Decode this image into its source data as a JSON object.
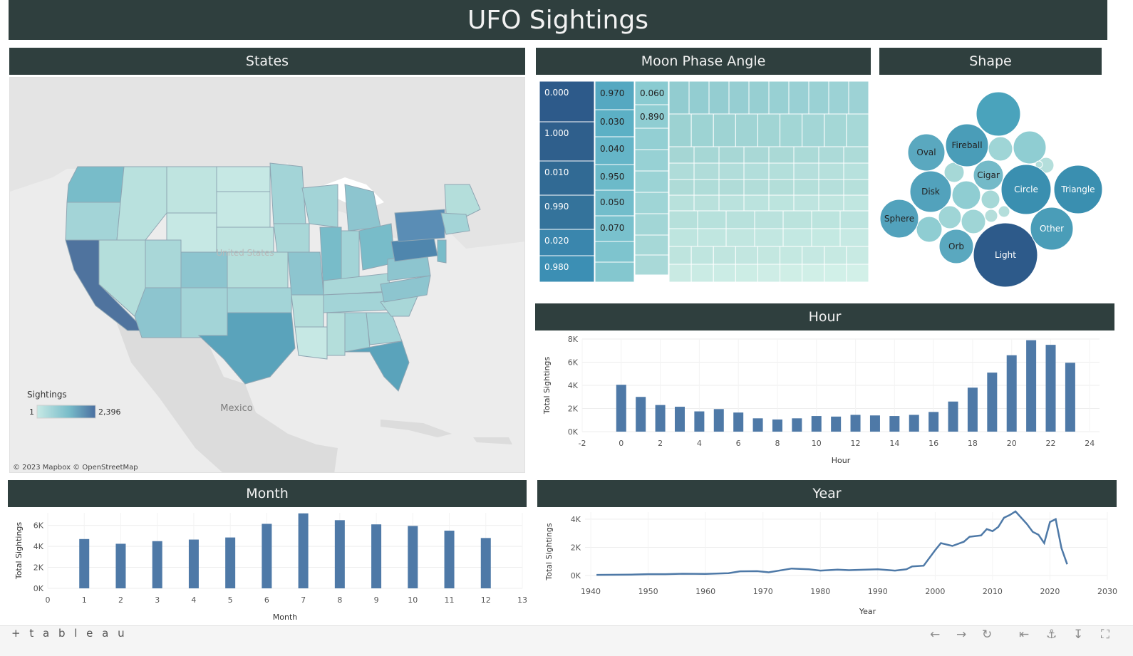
{
  "title": "UFO Sightings",
  "panels": {
    "states": "States",
    "moon": "Moon Phase Angle",
    "shape": "Shape",
    "hour": "Hour",
    "month": "Month",
    "year": "Year"
  },
  "map": {
    "legend_title": "Sightings",
    "legend_min": "1",
    "legend_max": "2,396",
    "country_label": "United States",
    "mexico_label": "Mexico",
    "attribution": "© 2023 Mapbox  © OpenStreetMap",
    "colors": {
      "low": "#c7e9e5",
      "high": "#4a6fa0"
    }
  },
  "chart_data": [
    {
      "id": "moon",
      "type": "treemap",
      "title": "Moon Phase Angle",
      "labeled_cells": [
        "0.000",
        "1.000",
        "0.010",
        "0.990",
        "0.020",
        "0.980",
        "0.970",
        "0.030",
        "0.040",
        "0.950",
        "0.050",
        "0.070",
        "0.060",
        "0.890"
      ]
    },
    {
      "id": "shape",
      "type": "bubble",
      "title": "Shape",
      "labels": [
        "Light",
        "Triangle",
        "Circle",
        "Fireball",
        "Other",
        "Sphere",
        "Disk",
        "Oval",
        "Orb",
        "Cigar"
      ]
    },
    {
      "id": "hour",
      "type": "bar",
      "title": "Hour",
      "xlabel": "Hour",
      "ylabel": "Total Sightings",
      "x": [
        0,
        1,
        2,
        3,
        4,
        5,
        6,
        7,
        8,
        9,
        10,
        11,
        12,
        13,
        14,
        15,
        16,
        17,
        18,
        19,
        20,
        21,
        22,
        23
      ],
      "values": [
        4050,
        3000,
        2300,
        2150,
        1750,
        1950,
        1650,
        1150,
        1050,
        1150,
        1350,
        1300,
        1450,
        1400,
        1350,
        1450,
        1700,
        2600,
        3800,
        5100,
        6600,
        7900,
        7500,
        5950
      ],
      "xlim": [
        -2,
        24.5
      ],
      "ylim": [
        0,
        8000
      ],
      "xticks": [
        "-2",
        "0",
        "2",
        "4",
        "6",
        "8",
        "10",
        "12",
        "14",
        "16",
        "18",
        "20",
        "22",
        "24"
      ],
      "yticks": [
        "0K",
        "2K",
        "4K",
        "6K",
        "8K"
      ]
    },
    {
      "id": "month",
      "type": "bar",
      "title": "Month",
      "xlabel": "Month",
      "ylabel": "Total Sightings",
      "x": [
        1,
        2,
        3,
        4,
        5,
        6,
        7,
        8,
        9,
        10,
        11,
        12
      ],
      "values": [
        4700,
        4250,
        4500,
        4650,
        4850,
        6150,
        7150,
        6500,
        6100,
        5950,
        5500,
        4800
      ],
      "xlim": [
        0,
        13
      ],
      "ylim": [
        0,
        7200
      ],
      "xticks": [
        "0",
        "1",
        "2",
        "3",
        "4",
        "5",
        "6",
        "7",
        "8",
        "9",
        "10",
        "11",
        "12",
        "13"
      ],
      "yticks": [
        "0K",
        "2K",
        "4K",
        "6K"
      ]
    },
    {
      "id": "year",
      "type": "line",
      "title": "Year",
      "xlabel": "Year",
      "ylabel": "Total Sightings",
      "x": [
        1941,
        1945,
        1947,
        1950,
        1953,
        1956,
        1960,
        1964,
        1966,
        1969,
        1971,
        1975,
        1978,
        1980,
        1983,
        1985,
        1990,
        1993,
        1995,
        1996,
        1998,
        2000,
        2001,
        2003,
        2005,
        2006,
        2008,
        2009,
        2010,
        2011,
        2012,
        2013,
        2014,
        2016,
        2017,
        2018,
        2019,
        2020,
        2021,
        2022,
        2023
      ],
      "values": [
        50,
        60,
        70,
        100,
        100,
        130,
        120,
        170,
        300,
        310,
        230,
        500,
        450,
        350,
        420,
        380,
        450,
        350,
        450,
        650,
        700,
        1800,
        2300,
        2100,
        2400,
        2750,
        2850,
        3300,
        3150,
        3450,
        4100,
        4300,
        4550,
        3650,
        3100,
        2900,
        2300,
        3800,
        4000,
        1950,
        800
      ],
      "xlim": [
        1939,
        2030
      ],
      "ylim": [
        -300,
        4500
      ],
      "xticks": [
        "1940",
        "1950",
        "1960",
        "1970",
        "1980",
        "1990",
        "2000",
        "2010",
        "2020",
        "2030"
      ],
      "yticks": [
        "0K",
        "2K",
        "4K"
      ]
    }
  ],
  "footer": {
    "logo": "+ t a b l e a u",
    "icons": [
      "undo-icon",
      "redo-icon",
      "revert-icon",
      "reset-icon",
      "share-icon",
      "download-icon",
      "fullscreen-icon"
    ]
  }
}
